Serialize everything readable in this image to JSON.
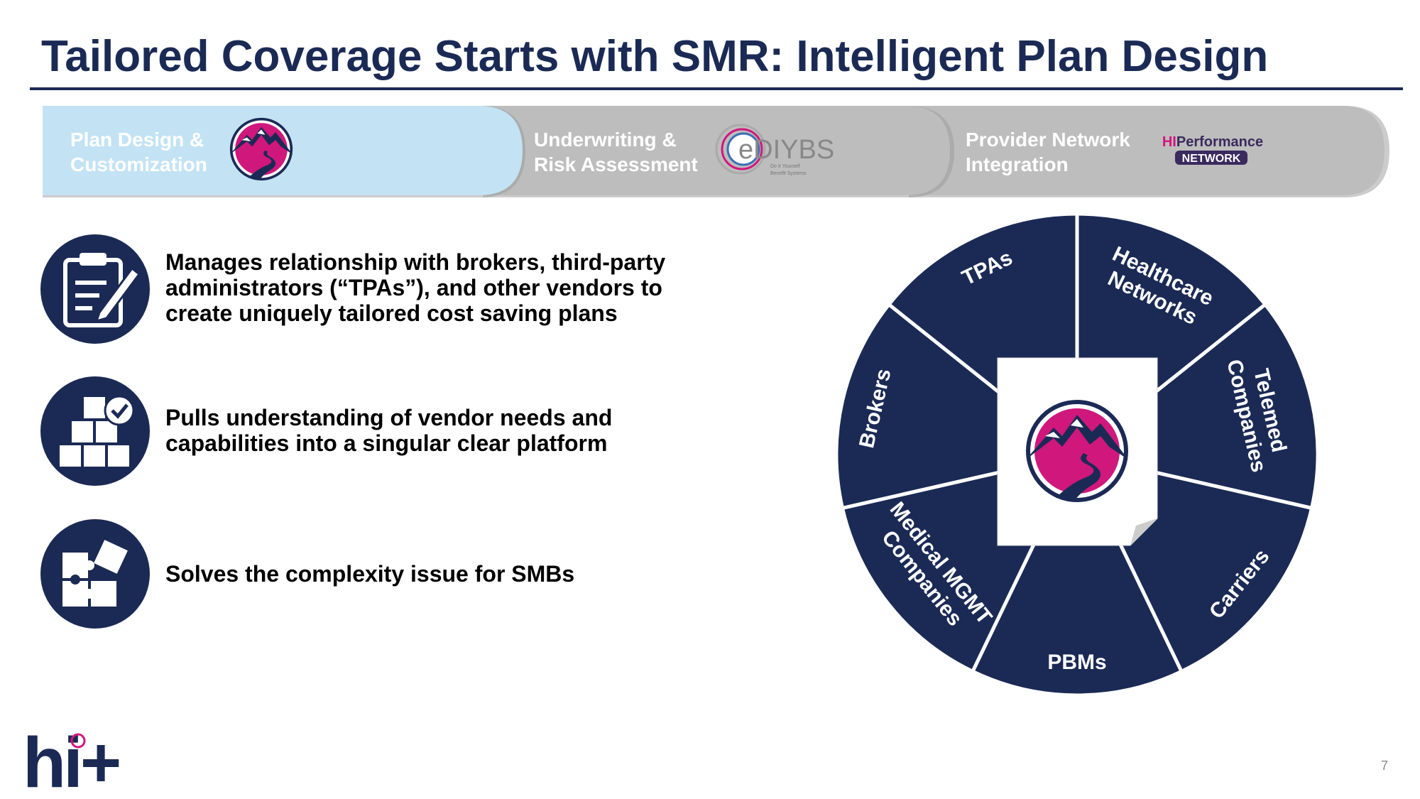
{
  "header": {
    "title": "Tailored Coverage Starts with SMR: Intelligent Plan Design"
  },
  "steps": [
    {
      "lines": [
        "Plan Design &",
        "Customization"
      ]
    },
    {
      "lines": [
        "Underwriting &",
        "Risk Assessment"
      ],
      "logo_text": "eDIYBS",
      "logo_sub": [
        "Do It Yourself",
        "Benefit Systems"
      ]
    },
    {
      "lines": [
        "Provider Network",
        "Integration"
      ],
      "logo_prefix": "HI",
      "logo_text": "Performance",
      "logo_badge": "NETWORK"
    }
  ],
  "bullets": [
    {
      "lines": [
        "Manages relationship with brokers, third-party",
        "administrators (“TPAs”), and other vendors to",
        "create uniquely tailored cost saving plans"
      ]
    },
    {
      "lines": [
        "Pulls understanding of vendor needs and",
        "capabilities into a singular clear platform"
      ]
    },
    {
      "lines": [
        "Solves the complexity issue for SMBs"
      ]
    }
  ],
  "wheel": {
    "segments": [
      {
        "lines": [
          "Healthcare",
          "Networks"
        ]
      },
      {
        "lines": [
          "Telemed",
          "Companies"
        ]
      },
      {
        "lines": [
          "Carriers"
        ]
      },
      {
        "lines": [
          "PBMs"
        ]
      },
      {
        "lines": [
          "Medical MGMT",
          "Companies"
        ]
      },
      {
        "lines": [
          "Brokers"
        ]
      },
      {
        "lines": [
          "TPAs"
        ]
      }
    ]
  },
  "footer": {
    "brand": "hi+",
    "page_number": "7"
  }
}
